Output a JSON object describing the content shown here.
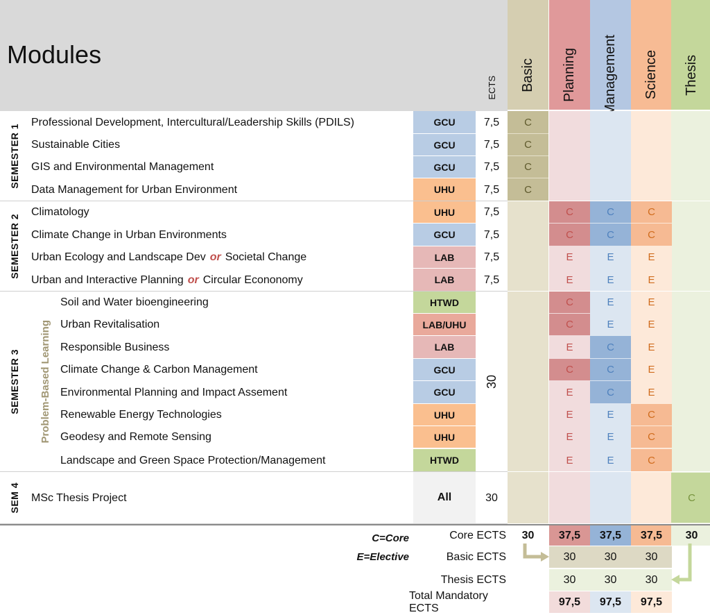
{
  "title": "Modules",
  "ects_header": "ECTS",
  "tracks": [
    {
      "key": "basic",
      "label": "Basic",
      "color": "#d5ceb1",
      "light": "#e6e1cc",
      "strong": "#b5ab82",
      "text": "#6e6535"
    },
    {
      "key": "planning",
      "label": "Planning",
      "color": "#e0999a",
      "light": "#f1dcdd",
      "strong": "#d38d8e",
      "text": "#c0504d"
    },
    {
      "key": "management",
      "label": "Management",
      "color": "#b4c7e2",
      "light": "#dce6f1",
      "strong": "#95b3d7",
      "text": "#4f81bd"
    },
    {
      "key": "science",
      "label": "Science",
      "color": "#f7bb94",
      "light": "#fde9d9",
      "strong": "#f6ba93",
      "text": "#d06c1d"
    },
    {
      "key": "thesis",
      "label": "Thesis",
      "color": "#c4d79b",
      "light": "#ebf1de",
      "strong": "#c4d79b",
      "text": "#76923c"
    }
  ],
  "institution_colors": {
    "GCU": "#b8cce4",
    "UHU": "#fabf8f",
    "LAB": "#e6b8b7",
    "HTWD": "#c4d79b",
    "LAB/UHU": "#e9a99b",
    "All": "#f2f2f2"
  },
  "semesters": [
    {
      "label": "SEMESTER 1"
    },
    {
      "label": "SEMESTER 2"
    },
    {
      "label": "SEMESTER 3",
      "sub": "Problem-Based Learning",
      "ects": "30"
    },
    {
      "label": "SEM 4"
    }
  ],
  "modules": [
    {
      "sem": 0,
      "name": "Professional Development, Intercultural/Leadership Skills (PDILS)",
      "inst": "GCU",
      "ects": "7,5",
      "marks": [
        "C",
        "",
        "",
        "",
        ""
      ]
    },
    {
      "sem": 0,
      "name": "Sustainable Cities",
      "inst": "GCU",
      "ects": "7,5",
      "marks": [
        "C",
        "",
        "",
        "",
        ""
      ]
    },
    {
      "sem": 0,
      "name": "GIS and Environmental Management",
      "inst": "GCU",
      "ects": "7,5",
      "marks": [
        "C",
        "",
        "",
        "",
        ""
      ]
    },
    {
      "sem": 0,
      "name": "Data Management for Urban Environment",
      "inst": "UHU",
      "ects": "7,5",
      "marks": [
        "C",
        "",
        "",
        "",
        ""
      ]
    },
    {
      "sem": 1,
      "name": "Climatology",
      "inst": "UHU",
      "ects": "7,5",
      "marks": [
        "",
        "C",
        "C",
        "C",
        ""
      ]
    },
    {
      "sem": 1,
      "name": "Climate Change in Urban Environments",
      "inst": "GCU",
      "ects": "7,5",
      "marks": [
        "",
        "C",
        "C",
        "C",
        ""
      ]
    },
    {
      "sem": 1,
      "name_a": "Urban Ecology and Landscape Dev",
      "or": "or",
      "name_b": "Societal Change",
      "inst": "LAB",
      "ects": "7,5",
      "marks": [
        "",
        "E",
        "E",
        "E",
        ""
      ]
    },
    {
      "sem": 1,
      "name_a": "Urban and Interactive Planning",
      "or": "or",
      "name_b": "Circular Econonomy",
      "inst": "LAB",
      "ects": "7,5",
      "marks": [
        "",
        "E",
        "E",
        "E",
        ""
      ]
    },
    {
      "sem": 2,
      "name": "Soil and Water bioengineering",
      "inst": "HTWD",
      "ects": "",
      "marks": [
        "",
        "C",
        "E",
        "E",
        ""
      ]
    },
    {
      "sem": 2,
      "name": "Urban Revitalisation",
      "inst": "LAB/UHU",
      "ects": "",
      "marks": [
        "",
        "C",
        "E",
        "E",
        ""
      ]
    },
    {
      "sem": 2,
      "name": "Responsible Business",
      "inst": "LAB",
      "ects": "",
      "marks": [
        "",
        "E",
        "C",
        "E",
        ""
      ]
    },
    {
      "sem": 2,
      "name": "Climate Change & Carbon Management",
      "inst": "GCU",
      "ects": "",
      "marks": [
        "",
        "C",
        "C",
        "E",
        ""
      ]
    },
    {
      "sem": 2,
      "name": "Environmental Planning and Impact Assement",
      "inst": "GCU",
      "ects": "",
      "marks": [
        "",
        "E",
        "C",
        "E",
        ""
      ]
    },
    {
      "sem": 2,
      "name": "Renewable Energy Technologies",
      "inst": "UHU",
      "ects": "",
      "marks": [
        "",
        "E",
        "E",
        "C",
        ""
      ]
    },
    {
      "sem": 2,
      "name": "Geodesy and Remote Sensing",
      "inst": "UHU",
      "ects": "",
      "marks": [
        "",
        "E",
        "E",
        "C",
        ""
      ]
    },
    {
      "sem": 2,
      "name": "Landscape and Green Space Protection/Management",
      "inst": "HTWD",
      "ects": "",
      "marks": [
        "",
        "E",
        "E",
        "C",
        ""
      ]
    },
    {
      "sem": 3,
      "name": "MSc Thesis Project",
      "inst": "All",
      "ects": "30",
      "marks": [
        "",
        "",
        "",
        "",
        "C"
      ]
    }
  ],
  "legend": {
    "core": "C=Core",
    "elective": "E=Elective"
  },
  "summary": [
    {
      "label": "Core ECTS",
      "values": [
        "30",
        "37,5",
        "37,5",
        "37,5",
        "30"
      ]
    },
    {
      "label": "Basic ECTS",
      "values": [
        "",
        "30",
        "30",
        "30",
        ""
      ]
    },
    {
      "label": "Thesis ECTS",
      "values": [
        "",
        "30",
        "30",
        "30",
        ""
      ]
    },
    {
      "label": "Total Mandatory ECTS",
      "values": [
        "",
        "97,5",
        "97,5",
        "97,5",
        ""
      ]
    }
  ]
}
